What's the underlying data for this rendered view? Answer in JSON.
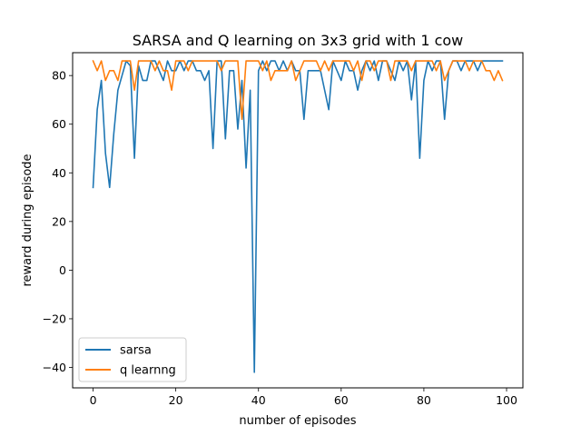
{
  "chart_data": {
    "type": "line",
    "title": "SARSA and Q learning on 3x3 grid with 1 cow",
    "xlabel": "number of episodes",
    "ylabel": "reward during episode",
    "xlim": [
      -4.95,
      103.95
    ],
    "ylim": [
      -48.4,
      89.4
    ],
    "xticks": [
      0,
      20,
      40,
      60,
      80,
      100
    ],
    "yticks": [
      -40,
      -20,
      0,
      20,
      40,
      60,
      80
    ],
    "grid": false,
    "legend_position": "lower-left",
    "series": [
      {
        "name": "sarsa",
        "color": "#1f77b4",
        "values": [
          34,
          66,
          78,
          48,
          34,
          56,
          74,
          80,
          86,
          84,
          46,
          84,
          78,
          78,
          86,
          86,
          82,
          78,
          86,
          82,
          82,
          86,
          82,
          86,
          86,
          82,
          82,
          78,
          82,
          50,
          86,
          86,
          54,
          82,
          82,
          58,
          78,
          42,
          74,
          -42,
          82,
          86,
          82,
          86,
          86,
          82,
          86,
          82,
          86,
          82,
          82,
          62,
          82,
          82,
          82,
          82,
          74,
          66,
          86,
          82,
          78,
          86,
          82,
          82,
          74,
          82,
          86,
          82,
          86,
          78,
          86,
          86,
          82,
          78,
          86,
          82,
          86,
          70,
          86,
          46,
          78,
          86,
          82,
          86,
          86,
          62,
          82,
          86,
          86,
          82,
          86,
          86,
          86,
          82,
          86,
          86,
          86,
          86,
          86,
          86
        ]
      },
      {
        "name": "q learnng",
        "color": "#ff7f0e",
        "values": [
          86,
          82,
          86,
          78,
          82,
          82,
          78,
          86,
          86,
          86,
          74,
          86,
          86,
          86,
          86,
          82,
          86,
          82,
          82,
          74,
          86,
          86,
          86,
          82,
          86,
          86,
          86,
          86,
          86,
          86,
          86,
          82,
          86,
          86,
          86,
          86,
          62,
          86,
          86,
          86,
          86,
          82,
          86,
          78,
          82,
          82,
          82,
          82,
          86,
          78,
          82,
          86,
          86,
          86,
          86,
          82,
          86,
          82,
          86,
          86,
          86,
          86,
          86,
          82,
          86,
          78,
          86,
          86,
          82,
          86,
          86,
          86,
          78,
          86,
          86,
          86,
          86,
          82,
          86,
          86,
          86,
          86,
          86,
          82,
          86,
          78,
          82,
          86,
          86,
          86,
          86,
          82,
          86,
          86,
          86,
          82,
          82,
          78,
          82,
          78
        ]
      }
    ]
  }
}
